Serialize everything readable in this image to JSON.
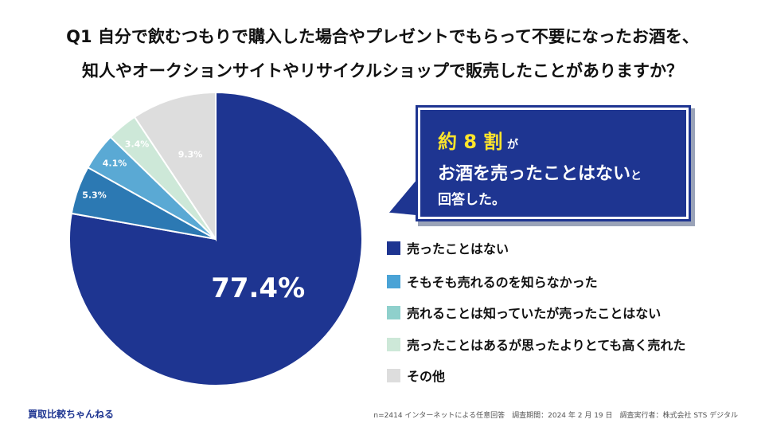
{
  "title_lines": [
    "Q1 自分で飲むつもりで購入した場合やプレゼントでもらって不要になったお酒を、",
    "知人やオークションサイトやリサイクルショップで販売したことがありますか？"
  ],
  "callout": {
    "highlight": "約 8 割",
    "suffix1": "が",
    "line2_main": "お酒を売ったことはない",
    "line2_suffix": "と",
    "line3": "回答した。"
  },
  "chart_data": {
    "type": "pie",
    "start": "12 o'clock, clockwise",
    "slices": [
      {
        "label": "売ったことはない",
        "value": 77.4,
        "display": "77.4%",
        "color": "#1e3591"
      },
      {
        "label": "そもそも売れるのを知らなかった",
        "value": 5.3,
        "display": "5.3%",
        "color": "#2c79b3"
      },
      {
        "label": "売れることは知っていたが売ったことはない",
        "value": 4.1,
        "display": "4.1%",
        "color": "#5aa9d4"
      },
      {
        "label": "売ったことはあるが思ったよりとても高く売れた",
        "value": 3.4,
        "display": "3.4%",
        "color": "#cde8d8"
      },
      {
        "label": "その他",
        "value": 9.3,
        "display": "9.3%",
        "color": "#dddddd"
      }
    ]
  },
  "legend": [
    {
      "label": "売ったことはない",
      "color": "#1e3591"
    },
    {
      "label": "そもそも売れるのを知らなかった",
      "color": "#4aa3d6"
    },
    {
      "label": "売れることは知っていたが売ったことはない",
      "color": "#8fd0cc"
    },
    {
      "label": "売ったことはあるが思ったよりとても高く売れた",
      "color": "#cde8d8"
    },
    {
      "label": "その他",
      "color": "#dddddd"
    }
  ],
  "footer": {
    "brand": "買取比較ちゃんねる",
    "note": "n=2414 インターネットによる任意回答　調査期間：2024 年 2 月 19 日　調査実行者：株式会社 STS デジタル"
  }
}
